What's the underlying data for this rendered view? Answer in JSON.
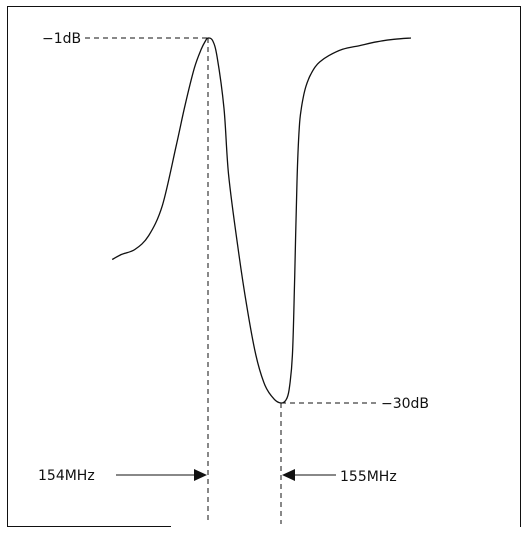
{
  "chart_data": {
    "type": "line",
    "title": "",
    "xlabel": "",
    "ylabel": "",
    "grid": false,
    "series": [
      {
        "x": [
          153.28,
          153.36,
          153.48,
          153.6,
          153.72,
          153.84,
          153.92,
          154.0,
          154.06,
          154.1,
          154.12,
          154.16,
          154.2,
          154.26,
          154.3,
          154.38,
          154.46,
          154.54,
          154.62,
          154.7,
          154.76,
          154.8,
          154.83,
          154.86,
          154.88,
          154.9,
          154.92,
          154.94,
          154.96,
          154.98,
          155.0,
          155.02,
          155.06,
          155.1,
          155.18,
          155.3,
          155.45,
          155.6,
          155.75,
          155.9
        ],
        "y": [
          -18.6,
          -18.2,
          -17.8,
          -16.7,
          -14.3,
          -9.6,
          -6.3,
          -3.4,
          -1.9,
          -1.2,
          -1.0,
          -1.2,
          -2.5,
          -6.6,
          -11.8,
          -17.5,
          -22.3,
          -26.2,
          -28.6,
          -29.7,
          -30.0,
          -29.8,
          -29.0,
          -26.2,
          -20.0,
          -12.4,
          -8.1,
          -6.5,
          -5.5,
          -4.8,
          -4.3,
          -3.9,
          -3.3,
          -2.9,
          -2.4,
          -1.9,
          -1.6,
          -1.3,
          -1.1,
          -1.0
        ]
      }
    ],
    "annotations": {
      "peak": {
        "label": "−1dB",
        "x": 154.12,
        "y": -1
      },
      "notch": {
        "label": "−30dB",
        "x": 154.76,
        "y": -30
      },
      "left_freq": {
        "label": "154MHz",
        "x": 154.12
      },
      "right_freq": {
        "label": "155MHz",
        "x": 154.76
      }
    }
  }
}
